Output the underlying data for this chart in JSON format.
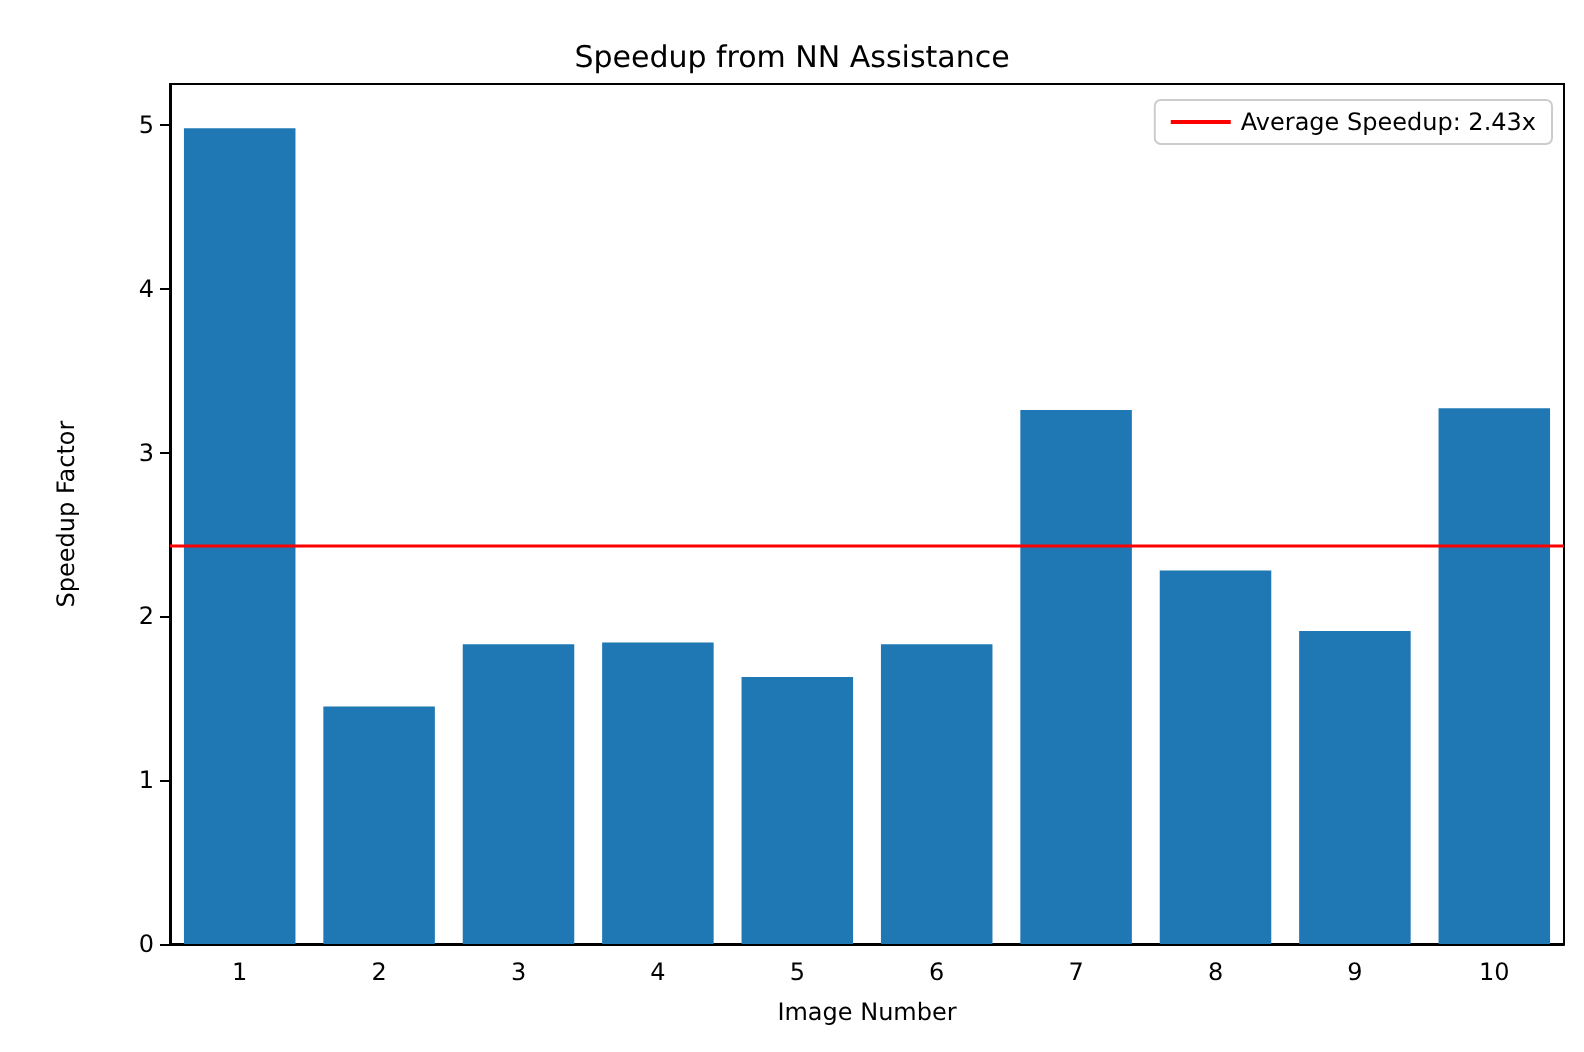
{
  "chart_data": {
    "type": "bar",
    "title": "Speedup from NN Assistance",
    "xlabel": "Image Number",
    "ylabel": "Speedup Factor",
    "categories": [
      "1",
      "2",
      "3",
      "4",
      "5",
      "6",
      "7",
      "8",
      "9",
      "10"
    ],
    "values": [
      4.98,
      1.45,
      1.83,
      1.84,
      1.63,
      1.83,
      3.26,
      2.28,
      1.91,
      3.27
    ],
    "color": "#1f77b4",
    "ylim": [
      0,
      5.25
    ],
    "yticks": [
      0,
      1,
      2,
      3,
      4,
      5
    ],
    "ref_lines": [
      {
        "axis": "y",
        "value": 2.43,
        "label": "Average Speedup: 2.43x",
        "color": "#ff0000",
        "line_style": "solid"
      }
    ],
    "legend": "top right",
    "grid": false
  }
}
